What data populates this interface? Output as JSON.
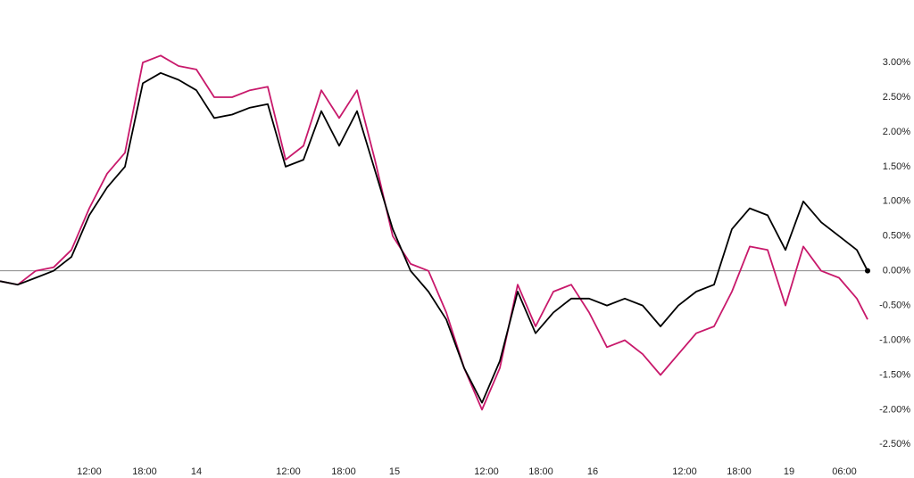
{
  "chart_data": {
    "type": "line",
    "x": [
      0,
      2,
      4,
      6,
      8,
      10,
      12,
      14,
      16,
      18,
      20,
      22,
      24,
      26,
      28,
      30,
      32,
      34,
      36,
      38,
      40,
      42,
      44,
      46,
      48,
      50,
      52,
      54,
      56,
      58,
      60,
      62,
      64,
      66,
      68,
      70,
      72,
      74,
      76,
      78,
      80,
      82,
      84,
      86,
      88,
      90,
      92,
      94,
      96,
      97.2
    ],
    "series": [
      {
        "color": "#000000",
        "values": [
          -0.15,
          -0.2,
          -0.1,
          0.0,
          0.2,
          0.8,
          1.2,
          1.5,
          2.7,
          2.85,
          2.75,
          2.6,
          2.2,
          2.25,
          2.35,
          2.4,
          1.5,
          1.6,
          2.3,
          1.8,
          2.3,
          1.45,
          0.6,
          0.0,
          -0.3,
          -0.7,
          -1.4,
          -1.9,
          -1.3,
          -0.3,
          -0.9,
          -0.6,
          -0.4,
          -0.4,
          -0.5,
          -0.4,
          -0.5,
          -0.8,
          -0.5,
          -0.3,
          -0.2,
          0.6,
          0.9,
          0.8,
          0.3,
          1.0,
          0.7,
          0.5,
          0.3,
          0.0
        ]
      },
      {
        "color": "#c8196b",
        "values": [
          -0.15,
          -0.2,
          0.0,
          0.05,
          0.3,
          0.9,
          1.4,
          1.7,
          3.0,
          3.1,
          2.95,
          2.9,
          2.5,
          2.5,
          2.6,
          2.65,
          1.6,
          1.8,
          2.6,
          2.2,
          2.6,
          1.6,
          0.5,
          0.1,
          0.0,
          -0.6,
          -1.4,
          -2.0,
          -1.4,
          -0.2,
          -0.8,
          -0.3,
          -0.2,
          -0.6,
          -1.1,
          -1.0,
          -1.2,
          -1.5,
          -1.2,
          -0.9,
          -0.8,
          -0.3,
          0.35,
          0.3,
          -0.5,
          0.35,
          0.0,
          -0.1,
          -0.4,
          -0.7
        ]
      }
    ],
    "xlim": [
      0,
      102.4
    ],
    "xticks": [
      {
        "value": 10,
        "label": "12:00"
      },
      {
        "value": 16.2,
        "label": "18:00"
      },
      {
        "value": 22,
        "label": "14"
      },
      {
        "value": 32.3,
        "label": "12:00"
      },
      {
        "value": 38.5,
        "label": "18:00"
      },
      {
        "value": 44.2,
        "label": "15"
      },
      {
        "value": 54.5,
        "label": "12:00"
      },
      {
        "value": 60.6,
        "label": "18:00"
      },
      {
        "value": 66.4,
        "label": "16"
      },
      {
        "value": 76.7,
        "label": "12:00"
      },
      {
        "value": 82.8,
        "label": "18:00"
      },
      {
        "value": 88.4,
        "label": "19"
      },
      {
        "value": 94.6,
        "label": "06:00"
      }
    ],
    "ylim": [
      -2.65,
      3.9
    ],
    "yticks": [
      {
        "value": 3,
        "label": "3.00%"
      },
      {
        "value": 2.5,
        "label": "2.50%"
      },
      {
        "value": 2,
        "label": "2.00%"
      },
      {
        "value": 1.5,
        "label": "1.50%"
      },
      {
        "value": 1,
        "label": "1.00%"
      },
      {
        "value": 0.5,
        "label": "0.50%"
      },
      {
        "value": 0,
        "label": "0.00%"
      },
      {
        "value": -0.5,
        "label": "-0.50%"
      },
      {
        "value": -1,
        "label": "-1.00%"
      },
      {
        "value": -1.5,
        "label": "-1.50%"
      },
      {
        "value": -2,
        "label": "-2.00%"
      },
      {
        "value": -2.5,
        "label": "-2.50%"
      }
    ],
    "grid": false
  }
}
